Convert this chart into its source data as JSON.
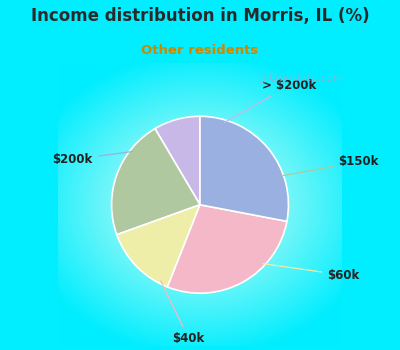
{
  "title": "Income distribution in Morris, IL (%)",
  "subtitle": "Other residents",
  "title_color": "#2a2a2a",
  "subtitle_color": "#cc8800",
  "background_color": "#00eeff",
  "chart_bg_center": "#ffffff",
  "chart_bg_edge": "#00eeff",
  "labels": [
    "> $200k",
    "$150k",
    "$60k",
    "$40k",
    "$200k"
  ],
  "values": [
    8.5,
    22.0,
    13.5,
    28.0,
    28.0
  ],
  "colors": [
    "#c8b8e8",
    "#b0c8a0",
    "#eeeea8",
    "#f4b8c8",
    "#9ab0e0"
  ],
  "label_color": "#222222",
  "line_color_gt200k": "#c8b8e8",
  "line_color_150k": "#b0c8a0",
  "line_color_60k": "#eeeea8",
  "line_color_40k": "#f4b8c8",
  "line_color_200k": "#9ab0e0",
  "watermark_text": "City-Data.com",
  "watermark_color": "#aaaacc",
  "startangle": 90,
  "figsize": [
    4.0,
    3.5
  ],
  "dpi": 100
}
